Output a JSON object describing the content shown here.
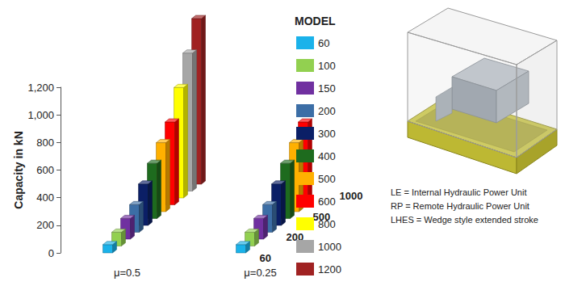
{
  "chart_data": {
    "type": "bar",
    "ylabel": "Capacity in kN",
    "categories": [
      "μ=0.5",
      "μ=0.25"
    ],
    "depth_categories": [
      "60",
      null,
      null,
      "200",
      null,
      null,
      "500",
      null,
      null,
      "1000",
      null
    ],
    "series": [
      {
        "name": "60",
        "color": "#1ab2ea",
        "values": [
          60,
          60
        ]
      },
      {
        "name": "100",
        "color": "#92d050",
        "values": [
          100,
          100
        ]
      },
      {
        "name": "150",
        "color": "#7030a0",
        "values": [
          150,
          150
        ]
      },
      {
        "name": "200",
        "color": "#3c6ea6",
        "values": [
          200,
          200
        ]
      },
      {
        "name": "300",
        "color": "#0b1f66",
        "values": [
          300,
          300
        ]
      },
      {
        "name": "400",
        "color": "#1e6b1e",
        "values": [
          400,
          400
        ]
      },
      {
        "name": "500",
        "color": "#ffb000",
        "values": [
          500,
          500
        ]
      },
      {
        "name": "600",
        "color": "#ff0000",
        "values": [
          600,
          600
        ]
      },
      {
        "name": "800",
        "color": "#ffff00",
        "values": [
          800,
          null
        ]
      },
      {
        "name": "1000",
        "color": "#a6a6a6",
        "values": [
          1000,
          null
        ]
      },
      {
        "name": "1200",
        "color": "#a02222",
        "values": [
          1200,
          null
        ]
      }
    ],
    "ylim": [
      0,
      1200
    ],
    "yticks": [
      0,
      200,
      400,
      600,
      800,
      1000,
      1200
    ],
    "grid": false,
    "legend": "right",
    "legend_title": "MODEL",
    "annotations": [
      "LE = Internal Hydraulic Power Unit",
      "RP = Remote Hydraulic Power Unit",
      "LHES = Wedge style extended stroke"
    ]
  }
}
